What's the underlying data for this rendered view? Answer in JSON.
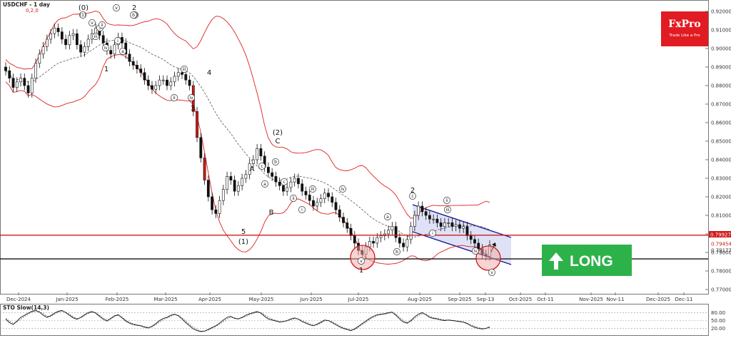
{
  "chart_data": {
    "type": "candlestick",
    "title": "USDCHF - 1 day",
    "subtitle": "0,2,0",
    "symbol": "USDCHF",
    "timeframe": "1 day",
    "ylim": [
      0.77,
      0.92
    ],
    "y_ticks": [
      "0.92000",
      "0.91000",
      "0.90000",
      "0.89000",
      "0.88000",
      "0.87000",
      "0.86000",
      "0.85000",
      "0.84000",
      "0.83000",
      "0.82000",
      "0.81000",
      "0.80000",
      "0.79000",
      "0.78000",
      "0.77000"
    ],
    "x_ticks": [
      "Dec-2024",
      "Jan-2025",
      "Feb-2025",
      "Mar-2025",
      "Apr-2025",
      "May-2025",
      "Jun-2025",
      "Jul-2025",
      "Aug-2025",
      "Sep-2025",
      "Sep-13",
      "Oct-2025",
      "Oct-11",
      "Nov-2025",
      "Nov-11",
      "Dec-2025",
      "Dec-11"
    ],
    "price_labels": [
      {
        "text": "0.79927",
        "color": "#d01818"
      },
      {
        "text": "0.79454",
        "color": "#d01818"
      },
      {
        "text": "0.79177",
        "color": "#333333"
      }
    ],
    "horizontal_lines": [
      {
        "y": 0.7993,
        "color": "#d01818"
      },
      {
        "y": 0.7865,
        "color": "#111111"
      }
    ],
    "close_series": [
      0.888,
      0.884,
      0.879,
      0.882,
      0.884,
      0.88,
      0.876,
      0.884,
      0.892,
      0.897,
      0.901,
      0.905,
      0.908,
      0.911,
      0.909,
      0.905,
      0.902,
      0.907,
      0.908,
      0.902,
      0.898,
      0.901,
      0.905,
      0.908,
      0.911,
      0.907,
      0.903,
      0.899,
      0.897,
      0.902,
      0.906,
      0.903,
      0.897,
      0.893,
      0.891,
      0.889,
      0.887,
      0.883,
      0.88,
      0.878,
      0.88,
      0.883,
      0.883,
      0.88,
      0.882,
      0.885,
      0.887,
      0.886,
      0.883,
      0.88,
      0.866,
      0.852,
      0.841,
      0.829,
      0.82,
      0.813,
      0.811,
      0.818,
      0.824,
      0.831,
      0.829,
      0.823,
      0.826,
      0.83,
      0.832,
      0.838,
      0.84,
      0.846,
      0.842,
      0.836,
      0.833,
      0.831,
      0.828,
      0.826,
      0.823,
      0.825,
      0.828,
      0.83,
      0.827,
      0.823,
      0.821,
      0.818,
      0.815,
      0.817,
      0.819,
      0.822,
      0.82,
      0.817,
      0.813,
      0.809,
      0.806,
      0.803,
      0.799,
      0.795,
      0.791,
      0.789,
      0.793,
      0.796,
      0.795,
      0.798,
      0.799,
      0.8,
      0.802,
      0.804,
      0.798,
      0.795,
      0.793,
      0.797,
      0.804,
      0.81,
      0.815,
      0.812,
      0.81,
      0.808,
      0.808,
      0.806,
      0.804,
      0.806,
      0.806,
      0.804,
      0.805,
      0.803,
      0.804,
      0.799,
      0.797,
      0.795,
      0.792,
      0.789,
      0.788,
      0.794
    ],
    "series": [
      {
        "name": "Bollinger Bands",
        "color": "#e02020"
      },
      {
        "name": "Moving Average",
        "color": "#555555"
      }
    ],
    "channel": {
      "fill": "#c4cbf0",
      "line": "#1b1b8f"
    },
    "wave_labels": [
      "(0)",
      "2",
      "1",
      "3",
      "4",
      "5",
      "(1)",
      "A",
      "B",
      "C",
      "(2)",
      "1",
      "2",
      "(1)",
      "(2)",
      "3",
      "ii",
      "iii",
      "iv",
      "v",
      "i",
      "ii",
      "iii",
      "iv",
      "v",
      "a",
      "b",
      "c",
      "a",
      "b",
      "c",
      "i",
      "ii",
      "iii",
      "iv",
      "v",
      "a",
      "b",
      "c",
      "i",
      "ii",
      "iii",
      "iv",
      "v"
    ],
    "indicator": {
      "title": "STO Slow(14,3)",
      "ylim": [
        0,
        100
      ],
      "levels": [
        80,
        50,
        20
      ],
      "level_labels": [
        "80.00",
        "50.00",
        "20.00"
      ],
      "k": [
        55,
        42,
        35,
        48,
        62,
        70,
        78,
        85,
        88,
        82,
        70,
        62,
        68,
        78,
        85,
        88,
        80,
        70,
        60,
        55,
        62,
        72,
        80,
        84,
        78,
        66,
        55,
        48,
        58,
        68,
        72,
        60,
        48,
        40,
        35,
        32,
        30,
        25,
        22,
        28,
        38,
        50,
        58,
        62,
        70,
        74,
        68,
        56,
        42,
        30,
        18,
        12,
        8,
        10,
        16,
        24,
        30,
        40,
        52,
        62,
        66,
        58,
        56,
        62,
        70,
        76,
        80,
        84,
        78,
        66,
        56,
        52,
        48,
        44,
        46,
        50,
        56,
        60,
        55,
        46,
        40,
        34,
        30,
        36,
        44,
        52,
        50,
        42,
        34,
        26,
        20,
        16,
        12,
        18,
        28,
        38,
        48,
        58,
        66,
        72,
        74,
        76,
        80,
        82,
        70,
        56,
        44,
        40,
        50,
        64,
        74,
        80,
        72,
        62,
        58,
        56,
        52,
        50,
        52,
        50,
        48,
        46,
        44,
        38,
        30,
        24,
        20,
        18,
        20,
        26
      ],
      "d": [
        58,
        48,
        40,
        45,
        55,
        65,
        74,
        82,
        86,
        84,
        76,
        66,
        66,
        74,
        82,
        86,
        82,
        74,
        64,
        58,
        60,
        68,
        76,
        82,
        80,
        70,
        60,
        52,
        56,
        64,
        70,
        64,
        52,
        44,
        38,
        34,
        31,
        27,
        24,
        26,
        34,
        44,
        54,
        60,
        66,
        72,
        70,
        60,
        48,
        36,
        24,
        16,
        10,
        10,
        14,
        20,
        28,
        36,
        46,
        56,
        62,
        60,
        57,
        60,
        66,
        72,
        77,
        81,
        80,
        72,
        62,
        55,
        50,
        46,
        46,
        48,
        53,
        57,
        56,
        50,
        44,
        38,
        33,
        34,
        40,
        48,
        50,
        46,
        38,
        30,
        23,
        18,
        14,
        16,
        24,
        34,
        44,
        54,
        62,
        68,
        72,
        74,
        77,
        80,
        74,
        62,
        50,
        43,
        46,
        58,
        68,
        76,
        74,
        66,
        61,
        58,
        55,
        52,
        52,
        51,
        49,
        47,
        45,
        41,
        34,
        28,
        23,
        20,
        20,
        23
      ]
    },
    "badge": {
      "text": "LONG",
      "color": "#2db24a"
    },
    "logo": {
      "brand": "FxPro",
      "tagline": "Trade Like a Pro",
      "color": "#e11b22"
    }
  }
}
